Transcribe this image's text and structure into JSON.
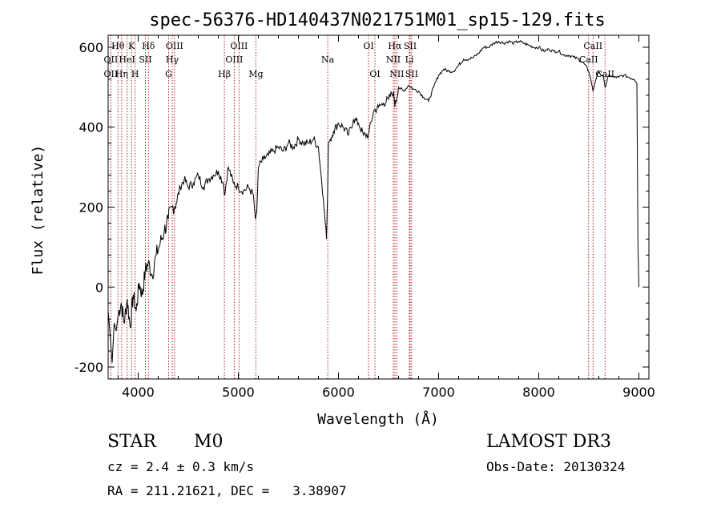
{
  "chart_data": {
    "type": "line",
    "title": "spec-56376-HD140437N021751M01_sp15-129.fits",
    "xlabel": "Wavelength (Å)",
    "ylabel": "Flux (relative)",
    "xlim": [
      3700,
      9100
    ],
    "ylim": [
      -230,
      630
    ],
    "xticks": [
      "4000",
      "5000",
      "6000",
      "7000",
      "8000",
      "9000"
    ],
    "yticks": [
      "-200",
      "0",
      "200",
      "400",
      "600"
    ],
    "grid": false,
    "series": [
      {
        "x": [
          3700,
          3720,
          3740,
          3760,
          3780,
          3800,
          3830,
          3860,
          3890,
          3920,
          3950,
          3980,
          4010,
          4040,
          4070,
          4100,
          4140,
          4180,
          4220,
          4260,
          4300,
          4340,
          4380,
          4420,
          4460,
          4500,
          4550,
          4600,
          4650,
          4700,
          4750,
          4800,
          4850,
          4861,
          4900,
          4950,
          5000,
          5050,
          5100,
          5150,
          5170,
          5185,
          5200,
          5250,
          5300,
          5350,
          5400,
          5450,
          5500,
          5550,
          5600,
          5650,
          5700,
          5750,
          5800,
          5850,
          5880,
          5892,
          5900,
          5920,
          5950,
          6000,
          6050,
          6100,
          6150,
          6200,
          6250,
          6300,
          6350,
          6400,
          6450,
          6500,
          6550,
          6563,
          6600,
          6650,
          6700,
          6750,
          6800,
          6850,
          6900,
          6950,
          7000,
          7050,
          7100,
          7150,
          7200,
          7250,
          7300,
          7350,
          7400,
          7450,
          7500,
          7550,
          7600,
          7650,
          7700,
          7750,
          7800,
          7850,
          7900,
          7950,
          8000,
          8050,
          8100,
          8150,
          8200,
          8250,
          8300,
          8350,
          8400,
          8450,
          8498,
          8520,
          8542,
          8570,
          8600,
          8650,
          8662,
          8700,
          8750,
          8800,
          8850,
          8900,
          8950,
          8980,
          8990,
          9000
        ],
        "y": [
          -60,
          -120,
          -190,
          -90,
          -110,
          -70,
          -40,
          -90,
          -30,
          -100,
          -20,
          -60,
          10,
          -20,
          40,
          60,
          30,
          80,
          110,
          140,
          170,
          200,
          210,
          250,
          270,
          250,
          260,
          280,
          250,
          270,
          280,
          290,
          260,
          230,
          300,
          260,
          250,
          240,
          250,
          230,
          170,
          190,
          300,
          320,
          330,
          340,
          350,
          340,
          360,
          350,
          370,
          360,
          360,
          370,
          350,
          220,
          120,
          240,
          360,
          370,
          390,
          410,
          400,
          380,
          420,
          410,
          380,
          380,
          440,
          450,
          460,
          470,
          490,
          450,
          500,
          490,
          505,
          495,
          490,
          475,
          465,
          500,
          530,
          545,
          540,
          540,
          555,
          570,
          570,
          575,
          585,
          600,
          600,
          610,
          615,
          610,
          615,
          610,
          615,
          610,
          605,
          600,
          600,
          590,
          595,
          590,
          590,
          580,
          580,
          575,
          570,
          560,
          540,
          520,
          490,
          520,
          540,
          520,
          500,
          530,
          525,
          525,
          530,
          525,
          520,
          510,
          110,
          0
        ]
      }
    ],
    "line_labels": [
      {
        "label": "Hθ",
        "wave": 3798,
        "row": 0
      },
      {
        "label": "OII",
        "wave": 3727,
        "row": 1
      },
      {
        "label": "OII",
        "wave": 3727,
        "row": 2
      },
      {
        "label": "K",
        "wave": 3934,
        "row": 0
      },
      {
        "label": "HeI",
        "wave": 3889,
        "row": 1
      },
      {
        "label": "Hη",
        "wave": 3835,
        "row": 2
      },
      {
        "label": "Hδ",
        "wave": 4102,
        "row": 0
      },
      {
        "label": "SII",
        "wave": 4072,
        "row": 1
      },
      {
        "label": "H",
        "wave": 3969,
        "row": 2
      },
      {
        "label": "OIII",
        "wave": 4363,
        "row": 0
      },
      {
        "label": "Hγ",
        "wave": 4340,
        "row": 1
      },
      {
        "label": "G",
        "wave": 4304,
        "row": 2
      },
      {
        "label": "Hβ",
        "wave": 4861,
        "row": 2
      },
      {
        "label": "OIII",
        "wave": 5007,
        "row": 0
      },
      {
        "label": "OIII",
        "wave": 4959,
        "row": 1
      },
      {
        "label": "Mg",
        "wave": 5175,
        "row": 2
      },
      {
        "label": "Na",
        "wave": 5893,
        "row": 1
      },
      {
        "label": "OI",
        "wave": 6300,
        "row": 0
      },
      {
        "label": "OI",
        "wave": 6364,
        "row": 2
      },
      {
        "label": "Hα",
        "wave": 6563,
        "row": 0
      },
      {
        "label": "SII",
        "wave": 6716,
        "row": 0
      },
      {
        "label": "NII",
        "wave": 6548,
        "row": 1
      },
      {
        "label": "Li",
        "wave": 6708,
        "row": 1
      },
      {
        "label": "NII",
        "wave": 6583,
        "row": 2
      },
      {
        "label": "SII",
        "wave": 6731,
        "row": 2
      },
      {
        "label": "CaII",
        "wave": 8542,
        "row": 0
      },
      {
        "label": "CaII",
        "wave": 8498,
        "row": 1
      },
      {
        "label": "CaII",
        "wave": 8662,
        "row": 2
      }
    ],
    "line_waves": [
      3727,
      3798,
      3835,
      3889,
      3934,
      3969,
      4072,
      4102,
      4304,
      4340,
      4363,
      4861,
      4959,
      5007,
      5175,
      5893,
      6300,
      6364,
      6548,
      6563,
      6583,
      6708,
      6716,
      6731,
      8498,
      8542,
      8662
    ],
    "colors": {
      "line": "#000000",
      "marker": "#b22222",
      "axis": "#000000"
    }
  },
  "info": {
    "class": "STAR",
    "subclass": "M0",
    "survey": "LAMOST DR3",
    "cz": "cz = 2.4 ± 0.3 km/s",
    "obsdate": "Obs-Date: 20130324",
    "radec": "RA = 211.21621, DEC =   3.38907"
  }
}
